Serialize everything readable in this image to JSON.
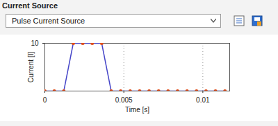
{
  "panel": {
    "title": "Current Source",
    "dropdown": "Pulse Current Source"
  },
  "chart_data": {
    "type": "line",
    "x_label": "Time [s]",
    "y_label": "Current [I]",
    "x": [
      0,
      0.0006,
      0.0012,
      0.0018,
      0.0024,
      0.003,
      0.0036,
      0.0042,
      0.0048,
      0.0054,
      0.006,
      0.0066,
      0.0072,
      0.0078,
      0.0084,
      0.009,
      0.0096,
      0.0102,
      0.0108,
      0.0114
    ],
    "series": [
      {
        "color": "#4646c8",
        "marker": "circle",
        "values": [
          0,
          0,
          0,
          10,
          10,
          10,
          10,
          0,
          0,
          0,
          0,
          0,
          0,
          0,
          0,
          0,
          0,
          0,
          0,
          0
        ]
      }
    ],
    "xlim": [
      0,
      0.0117
    ],
    "xticks": [
      0,
      0.005,
      0.01
    ],
    "ylim": [
      0,
      10
    ],
    "yticks": [
      10
    ],
    "grid": true
  }
}
